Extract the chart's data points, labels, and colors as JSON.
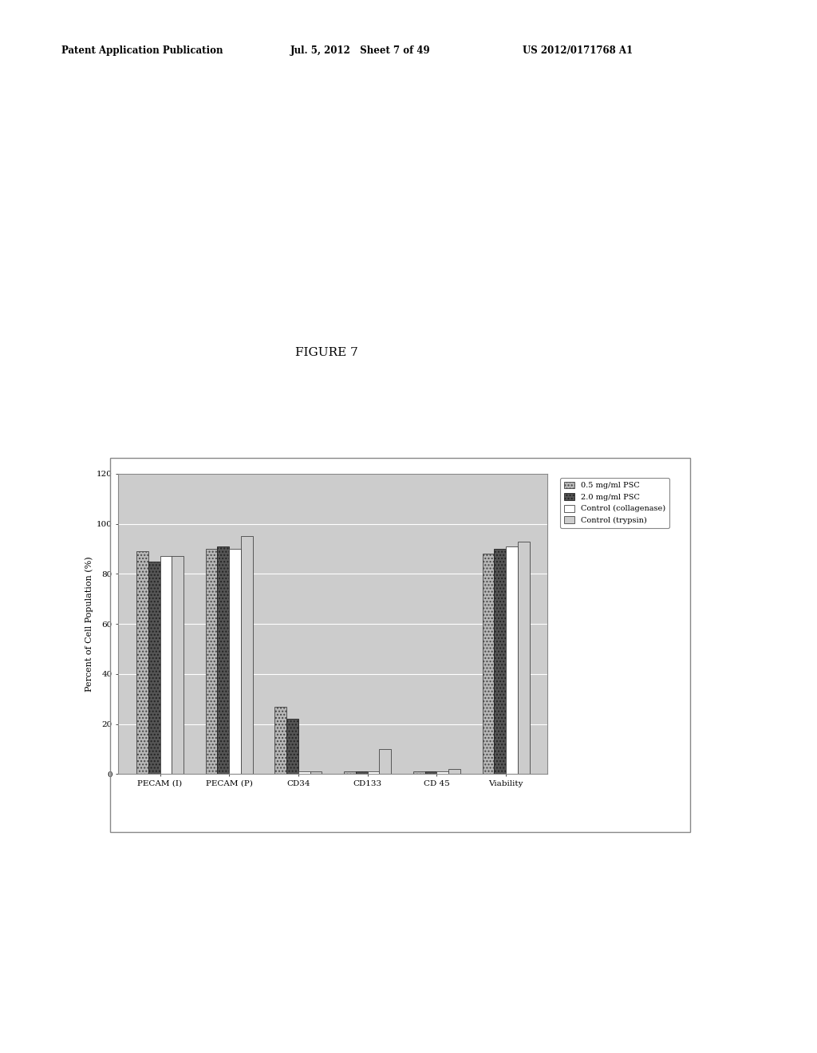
{
  "categories": [
    "PECAM (I)",
    "PECAM (P)",
    "CD34",
    "CD133",
    "CD 45",
    "Viability"
  ],
  "series": [
    {
      "label": "0.5 mg/ml PSC",
      "values": [
        89,
        90,
        27,
        1,
        1,
        88
      ],
      "color": "#b8b8b8",
      "hatch": "...."
    },
    {
      "label": "2.0 mg/ml PSC",
      "values": [
        85,
        91,
        22,
        1,
        1,
        90
      ],
      "color": "#555555",
      "hatch": "...."
    },
    {
      "label": "Control (collagenase)",
      "values": [
        87,
        90,
        1,
        1,
        1,
        91
      ],
      "color": "#ffffff",
      "hatch": ""
    },
    {
      "label": "Control (trypsin)",
      "values": [
        87,
        95,
        1,
        10,
        2,
        93
      ],
      "color": "#cccccc",
      "hatch": ""
    }
  ],
  "ylabel": "Percent of Cell Population (%)",
  "ylim": [
    0,
    120
  ],
  "yticks": [
    0,
    20,
    40,
    60,
    80,
    100,
    120
  ],
  "plot_bg_color": "#cccccc",
  "header_left": "Patent Application Publication",
  "header_mid": "Jul. 5, 2012   Sheet 7 of 49",
  "header_right": "US 2012/0171768 A1",
  "figure_label": "FIGURE 7",
  "bar_width": 0.17,
  "legend_labels": [
    "0.5 mg/ml PSC",
    "2.0 mg/ml PSC",
    "Control (collagenase)",
    "Control (trypsin)"
  ]
}
